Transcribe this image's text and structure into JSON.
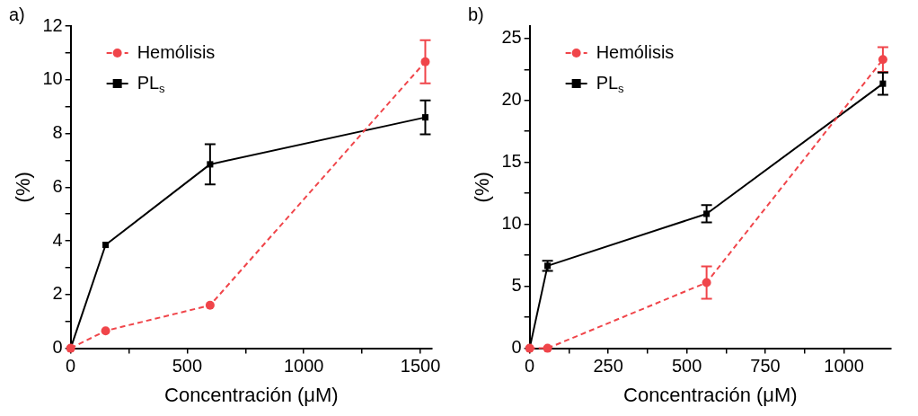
{
  "chart_data": [
    {
      "type": "line",
      "title": "a)",
      "xlabel": "Concentración (μM)",
      "ylabel": "(%)",
      "x": [
        0,
        150,
        598,
        1521
      ],
      "series": [
        {
          "name": "Hemólisis",
          "color": "#f0454a",
          "values": [
            0,
            0.65,
            1.6,
            10.67
          ],
          "errors": [
            null,
            null,
            null,
            0.8
          ],
          "marker": "circle",
          "line_style": "dashed"
        },
        {
          "name": "PL$_{s}$",
          "color": "#000000",
          "values": [
            0,
            3.85,
            6.85,
            8.6
          ],
          "errors": [
            null,
            null,
            0.75,
            0.63
          ],
          "marker": "square",
          "line_style": "solid"
        }
      ],
      "xlim": [
        0,
        1550
      ],
      "xticks": [
        0,
        {
          "value": 250,
          "label": null
        },
        500,
        {
          "value": 750,
          "label": null
        },
        1000,
        {
          "value": 1250,
          "label": null
        },
        1500
      ],
      "ylim": [
        0,
        12
      ],
      "yticks": [
        0,
        {
          "value": 1,
          "label": null
        },
        2,
        {
          "value": 3,
          "label": null
        },
        4,
        {
          "value": 5,
          "label": null
        },
        6,
        {
          "value": 7,
          "label": null
        },
        8,
        {
          "value": 9,
          "label": null
        },
        10,
        {
          "value": 11,
          "label": null
        },
        12
      ],
      "grid": false,
      "legend": "top left"
    },
    {
      "type": "line",
      "title": "b)",
      "xlabel": "Concentración (μM)",
      "ylabel": "(%)",
      "x": [
        0,
        57,
        563,
        1124
      ],
      "series": [
        {
          "name": "Hemólisis",
          "color": "#f0454a",
          "values": [
            0,
            0,
            5.3,
            23.3
          ],
          "errors": [
            null,
            null,
            1.3,
            1.0
          ],
          "marker": "circle",
          "line_style": "dashed"
        },
        {
          "name": "PL$_{s}$",
          "color": "#000000",
          "values": [
            0,
            6.65,
            10.85,
            21.35
          ],
          "errors": [
            null,
            0.4,
            0.7,
            0.9
          ],
          "marker": "square",
          "line_style": "solid"
        }
      ],
      "xlim": [
        0,
        1150
      ],
      "xticks": [
        0,
        {
          "value": 125,
          "label": null
        },
        250,
        {
          "value": 375,
          "label": null
        },
        500,
        {
          "value": 625,
          "label": null
        },
        750,
        {
          "value": 875,
          "label": null
        },
        1000
      ],
      "ylim": [
        0,
        26
      ],
      "yticks": [
        0,
        {
          "value": 2.5,
          "label": null
        },
        5,
        {
          "value": 7.5,
          "label": null
        },
        10,
        {
          "value": 12.5,
          "label": null
        },
        15,
        {
          "value": 17.5,
          "label": null
        },
        20,
        {
          "value": 22.5,
          "label": null
        },
        25
      ],
      "grid": false,
      "legend": "top left"
    }
  ]
}
